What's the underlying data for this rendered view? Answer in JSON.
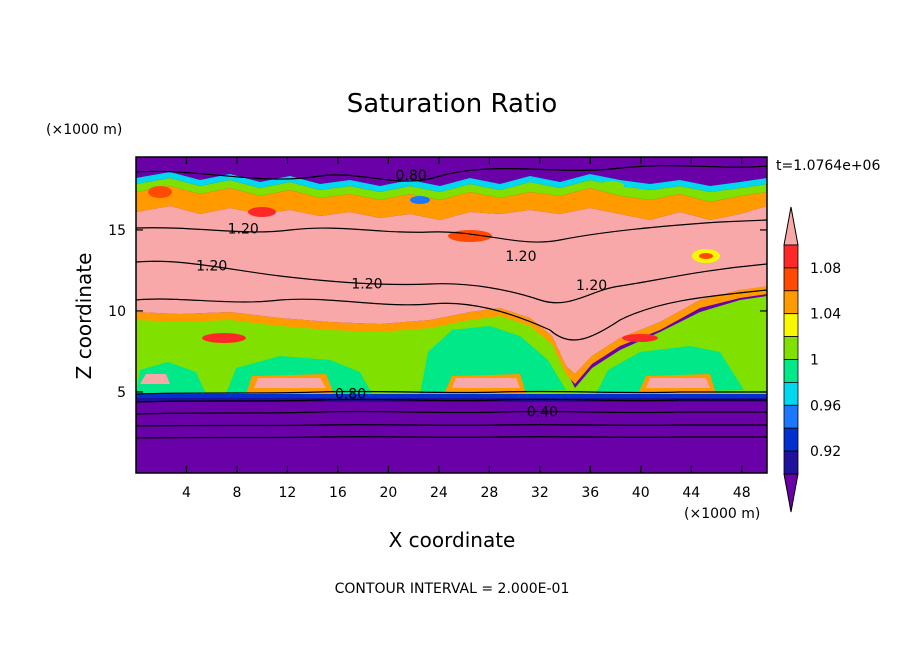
{
  "chart_data": {
    "type": "heatmap",
    "title": "Saturation Ratio",
    "xlabel": "X coordinate",
    "ylabel": "Z coordinate",
    "x_unit": "(×1000 m)",
    "y_unit": "(×1000 m)",
    "time_label": "t=1.0764e+06",
    "footer": "CONTOUR INTERVAL = 2.000E-01",
    "xlim": [
      0,
      50
    ],
    "ylim": [
      0,
      19.5
    ],
    "x_ticks": [
      4,
      8,
      12,
      16,
      20,
      24,
      28,
      32,
      36,
      40,
      44,
      48
    ],
    "y_ticks": [
      5,
      10,
      15
    ],
    "colorbar": {
      "labels": [
        "0.92",
        "0.96",
        "1",
        "1.04",
        "1.08"
      ],
      "levels": [
        0.9,
        0.92,
        0.94,
        0.96,
        0.98,
        1.0,
        1.02,
        1.04,
        1.06,
        1.08,
        1.1
      ],
      "colors": [
        "#6a00a8",
        "#20109e",
        "#0030d0",
        "#1a78ff",
        "#00d8f0",
        "#00e888",
        "#80e000",
        "#f8f800",
        "#ff9a00",
        "#ff4a00",
        "#ff2828",
        "#f8a8a8"
      ],
      "extends": "both"
    },
    "contour_labels": [
      {
        "text": "0.80",
        "x": 21.8,
        "y": 18.4
      },
      {
        "text": "1.20",
        "x": 8.5,
        "y": 15.1
      },
      {
        "text": "1.20",
        "x": 6.0,
        "y": 12.8
      },
      {
        "text": "1.20",
        "x": 18.3,
        "y": 11.7
      },
      {
        "text": "1.20",
        "x": 30.5,
        "y": 13.4
      },
      {
        "text": "1.20",
        "x": 36.1,
        "y": 11.6
      },
      {
        "text": "0.80",
        "x": 17.0,
        "y": 4.9
      },
      {
        "text": "0.40",
        "x": 32.2,
        "y": 3.8
      }
    ]
  }
}
